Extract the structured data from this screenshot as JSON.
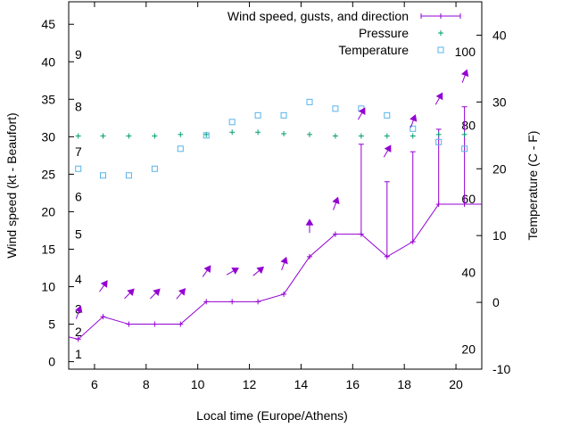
{
  "chart_data": {
    "type": "line",
    "xlabel": "Local time (Europe/Athens)",
    "ylabel": "Wind speed (kt - Beaufort)",
    "y2label": "Temperature (C - F)",
    "xlim": [
      5,
      21
    ],
    "ylim": [
      -1,
      48
    ],
    "y2lim": [
      -10,
      45
    ],
    "x_ticks": [
      6,
      8,
      10,
      12,
      14,
      16,
      18,
      20
    ],
    "y_ticks": [
      0,
      5,
      10,
      15,
      20,
      25,
      30,
      35,
      40,
      45
    ],
    "y2_ticks": [
      -10,
      0,
      10,
      20,
      30,
      40
    ],
    "beaufort_labels": [
      {
        "label": "1",
        "y": 1
      },
      {
        "label": "2",
        "y": 4
      },
      {
        "label": "3",
        "y": 7
      },
      {
        "label": "4",
        "y": 11
      },
      {
        "label": "5",
        "y": 17
      },
      {
        "label": "6",
        "y": 22
      },
      {
        "label": "7",
        "y": 28
      },
      {
        "label": "8",
        "y": 34
      },
      {
        "label": "9",
        "y": 41
      }
    ],
    "fahrenheit_labels": [
      {
        "label": "20",
        "y2": -7
      },
      {
        "label": "40",
        "y2": 4.5
      },
      {
        "label": "60",
        "y2": 15.5
      },
      {
        "label": "80",
        "y2": 26.5
      },
      {
        "label": "100",
        "y2": 37.5
      }
    ],
    "legend": [
      {
        "name": "Wind speed, gusts, and direction",
        "color": "#9400d3",
        "style": "line-plus"
      },
      {
        "name": "Pressure",
        "color": "#009e73",
        "style": "plus"
      },
      {
        "name": "Temperature",
        "color": "#56b4e9",
        "style": "square"
      }
    ],
    "legend_position": "top-right",
    "series": [
      {
        "name": "Wind speed, gusts, and direction",
        "color": "#9400d3",
        "x": [
          5,
          5.37,
          6.33,
          7.33,
          8.33,
          9.33,
          10.33,
          11.33,
          12.33,
          13.33,
          14.33,
          15.33,
          16.33,
          17.33,
          18.33,
          19.33,
          20.33,
          21
        ],
        "y": [
          3.3,
          3,
          6,
          5,
          5,
          5,
          8,
          8,
          8,
          9,
          14,
          17,
          17,
          14,
          16,
          21,
          21,
          21
        ]
      },
      {
        "name": "Gusts",
        "color": "#9400d3",
        "x": [
          16.33,
          17.33,
          18.33,
          19.33,
          20.33
        ],
        "y": [
          29,
          24,
          28,
          31,
          34
        ]
      },
      {
        "name": "Pressure",
        "color": "#009e73",
        "x": [
          5.37,
          6.33,
          7.33,
          8.33,
          9.33,
          10.33,
          11.33,
          12.33,
          13.33,
          14.33,
          15.33,
          16.33,
          17.33,
          18.33,
          19.33,
          20.33
        ],
        "y": [
          30.1,
          30.1,
          30.1,
          30.1,
          30.3,
          30.3,
          30.6,
          30.6,
          30.4,
          30.3,
          30.1,
          30.1,
          30.1,
          30.1,
          30.3,
          30.3
        ]
      },
      {
        "name": "Temperature",
        "color": "#56b4e9",
        "x": [
          5.37,
          6.33,
          7.33,
          8.33,
          9.33,
          10.33,
          11.33,
          12.33,
          13.33,
          14.33,
          15.33,
          16.33,
          17.33,
          18.33,
          19.33,
          20.33
        ],
        "y2": [
          20,
          19,
          19,
          20,
          23,
          25,
          27,
          28,
          28,
          30,
          29,
          29,
          28,
          26,
          24,
          23
        ]
      }
    ],
    "wind_direction_arrows": [
      {
        "x": 5.37,
        "y": 6.5,
        "angle": 200
      },
      {
        "x": 6.33,
        "y": 10,
        "angle": 215
      },
      {
        "x": 7.33,
        "y": 9,
        "angle": 225
      },
      {
        "x": 8.33,
        "y": 9,
        "angle": 225
      },
      {
        "x": 9.33,
        "y": 9,
        "angle": 220
      },
      {
        "x": 10.33,
        "y": 12,
        "angle": 215
      },
      {
        "x": 11.33,
        "y": 12,
        "angle": 240
      },
      {
        "x": 12.33,
        "y": 12,
        "angle": 230
      },
      {
        "x": 13.33,
        "y": 13,
        "angle": 200
      },
      {
        "x": 14.33,
        "y": 18,
        "angle": 180
      },
      {
        "x": 15.33,
        "y": 21,
        "angle": 200
      },
      {
        "x": 16.33,
        "y": 33,
        "angle": 210
      },
      {
        "x": 17.33,
        "y": 28,
        "angle": 210
      },
      {
        "x": 18.33,
        "y": 32,
        "angle": 200
      },
      {
        "x": 19.33,
        "y": 35,
        "angle": 210
      },
      {
        "x": 20.33,
        "y": 38,
        "angle": 200
      }
    ]
  }
}
